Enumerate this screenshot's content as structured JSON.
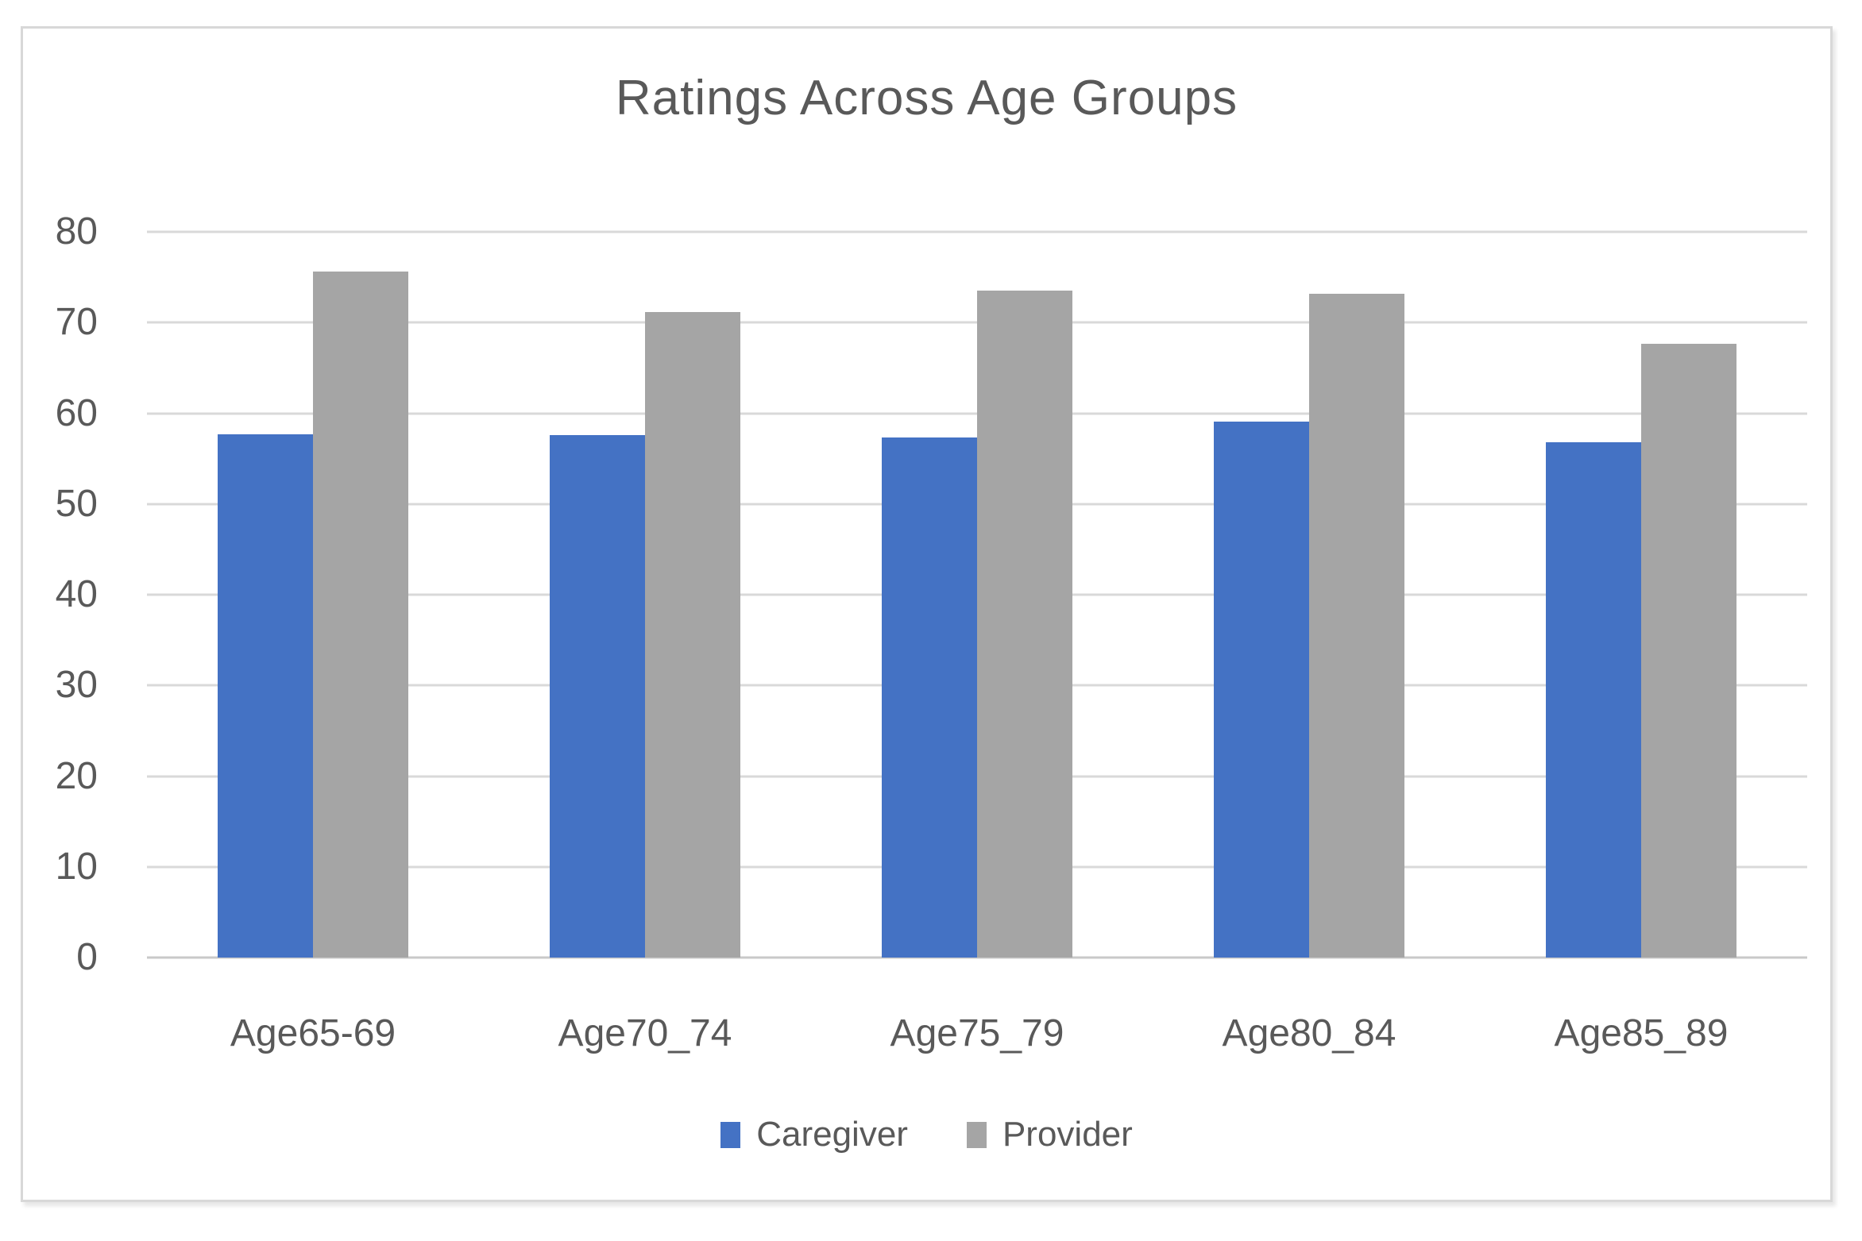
{
  "chart_data": {
    "type": "bar",
    "title": "Ratings Across Age Groups",
    "categories": [
      "Age65-69",
      "Age70_74",
      "Age75_79",
      "Age80_84",
      "Age85_89"
    ],
    "series": [
      {
        "name": "Caregiver",
        "color": "#4472C4",
        "values": [
          57.7,
          57.6,
          57.3,
          59.1,
          56.8
        ]
      },
      {
        "name": "Provider",
        "color": "#A5A5A5",
        "values": [
          75.6,
          71.2,
          73.5,
          73.2,
          67.7
        ]
      }
    ],
    "xlabel": "",
    "ylabel": "",
    "ylim": [
      0,
      80
    ],
    "yticks": [
      0,
      10,
      20,
      30,
      40,
      50,
      60,
      70,
      80
    ],
    "grid": true,
    "grid_color": "#D9D9D9",
    "text_color": "#595959",
    "legend_position": "bottom"
  }
}
